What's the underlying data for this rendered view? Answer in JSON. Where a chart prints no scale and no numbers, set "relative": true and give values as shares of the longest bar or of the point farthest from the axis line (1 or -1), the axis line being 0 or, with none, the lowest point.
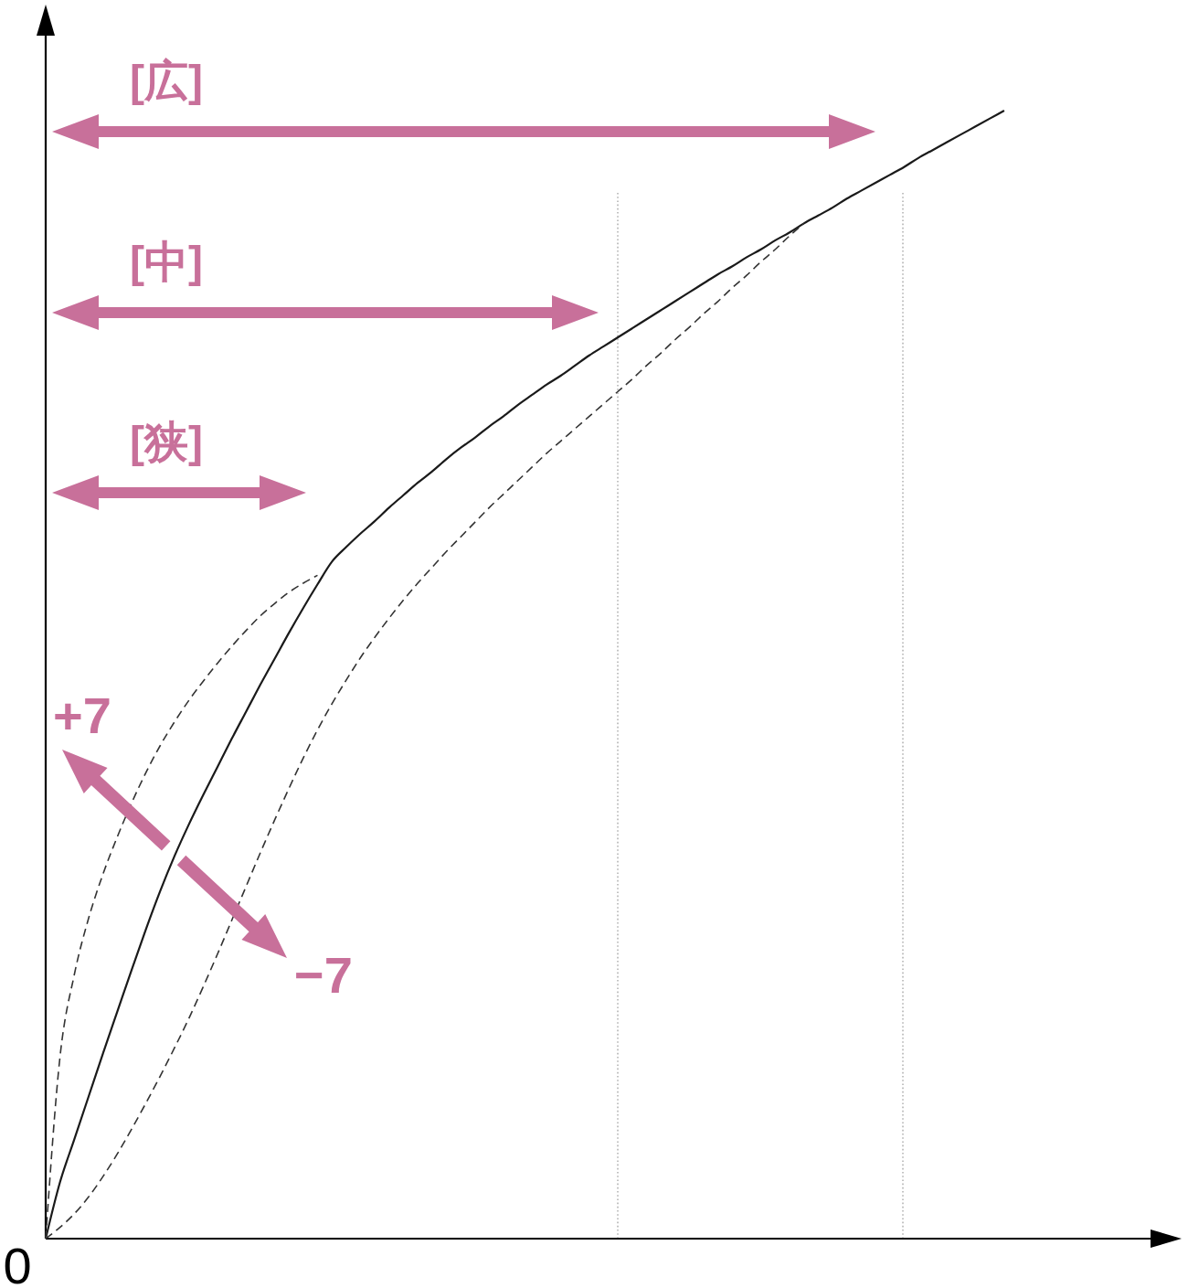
{
  "chart_data": {
    "type": "line",
    "relative": true,
    "categories": [
      null,
      null,
      null,
      null,
      null,
      null,
      null,
      null,
      null,
      null,
      null,
      null,
      null,
      null,
      null,
      null,
      null,
      null,
      null,
      null,
      null,
      null,
      null,
      null,
      null,
      null,
      null,
      null,
      null,
      null,
      null,
      null,
      null,
      null,
      null,
      null,
      null,
      null,
      null,
      null,
      null,
      null,
      null,
      null,
      null,
      null,
      null,
      null,
      null,
      null,
      null,
      null,
      null,
      null,
      null,
      null,
      null,
      null,
      null,
      null,
      null,
      null,
      null,
      null,
      null,
      null,
      null,
      null,
      null,
      null,
      null,
      null,
      null,
      null,
      null,
      null,
      null,
      null,
      null,
      null
    ],
    "series": [
      {
        "color": "#1a1a1a",
        "line_style": "solid",
        "values": [
          0,
          0.05,
          0.088,
          0.126,
          0.164,
          0.201,
          0.238,
          0.274,
          0.308,
          0.339,
          0.367,
          0.393,
          0.418,
          0.443,
          0.467,
          0.491,
          0.514,
          0.537,
          0.559,
          0.58,
          0.6,
          0.613,
          0.625,
          0.636,
          0.648,
          0.659,
          0.67,
          0.68,
          0.691,
          0.701,
          0.71,
          0.72,
          0.729,
          0.739,
          0.748,
          0.757,
          0.765,
          0.774,
          0.783,
          0.791,
          0.799,
          0.807,
          0.815,
          0.823,
          0.831,
          0.839,
          0.847,
          0.855,
          0.862,
          0.87,
          0.877,
          0.885,
          0.892,
          0.9,
          0.907,
          0.914,
          0.922,
          0.929,
          0.936,
          0.943,
          0.95,
          0.958,
          0.965,
          0.972,
          0.979,
          0.986,
          0.993,
          1,
          null,
          null,
          null,
          null,
          null,
          null,
          null,
          null,
          null,
          null,
          null,
          null
        ]
      },
      {
        "color": "#333333",
        "line_style": "dashed",
        "values": [
          0,
          0.161,
          0.234,
          0.284,
          0.323,
          0.356,
          0.386,
          0.413,
          0.437,
          0.458,
          0.477,
          0.494,
          0.51,
          0.525,
          0.539,
          0.552,
          0.563,
          0.573,
          0.581,
          0.588,
          null,
          null,
          null,
          null,
          null,
          null,
          null,
          null,
          null,
          null,
          null,
          null,
          null,
          null,
          null,
          null,
          null,
          null,
          null,
          null,
          null,
          null,
          null,
          null,
          null,
          null,
          null,
          null,
          null,
          null,
          null,
          null,
          null,
          null,
          null,
          null,
          null,
          null,
          null,
          null,
          null,
          null,
          null,
          null,
          null,
          null,
          null,
          null,
          null,
          null,
          null,
          null,
          null,
          null,
          null,
          null,
          null,
          null,
          null,
          null
        ]
      },
      {
        "color": "#333333",
        "line_style": "dashed",
        "values": [
          0,
          0.01,
          0.022,
          0.037,
          0.055,
          0.075,
          0.097,
          0.12,
          0.144,
          0.169,
          0.195,
          0.223,
          0.252,
          0.282,
          0.312,
          0.342,
          0.371,
          0.399,
          0.426,
          0.451,
          0.474,
          0.495,
          0.515,
          0.533,
          0.55,
          0.566,
          0.581,
          0.595,
          0.609,
          0.622,
          0.635,
          0.648,
          0.66,
          0.672,
          0.684,
          0.696,
          0.707,
          0.718,
          0.729,
          0.74,
          0.751,
          0.762,
          0.774,
          0.785,
          0.797,
          0.808,
          0.82,
          0.831,
          0.843,
          0.854,
          0.866,
          0.877,
          0.889,
          0.9,
          null,
          null,
          null,
          null,
          null,
          null,
          null,
          null,
          null,
          null,
          null,
          null,
          null,
          null,
          null,
          null,
          null,
          null,
          null,
          null,
          null,
          null,
          null,
          null,
          null,
          null
        ]
      }
    ],
    "annotations": [
      "[広]",
      "[中]",
      "[狭]",
      "+7",
      "−7",
      "0"
    ]
  }
}
